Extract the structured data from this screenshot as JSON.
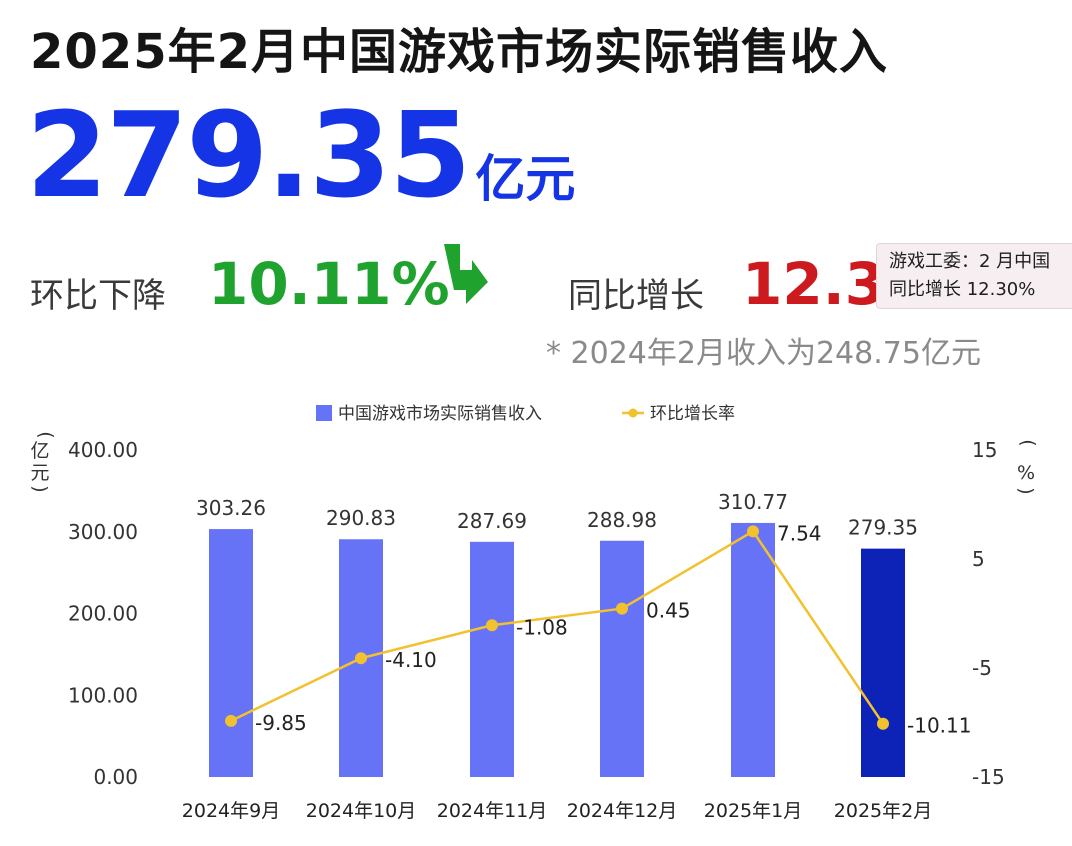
{
  "title": "2025年2月中国游戏市场实际销售收入",
  "headline": {
    "value": "279.35",
    "unit": "亿元"
  },
  "mom": {
    "label": "环比下降",
    "value": "10.11%"
  },
  "yoy": {
    "label": "同比增长",
    "value": "12.30"
  },
  "footnote": "* 2024年2月收入为248.75亿元",
  "tooltip": {
    "line1": "游戏工委：2 月中国",
    "line2": "同比增长 12.30%"
  },
  "colors": {
    "bar": "#6773f7",
    "bar_highlight": "#0d23b8",
    "line": "#f2c12e",
    "down": "#1fa22e",
    "up": "#cc1a1f",
    "headline": "#1434e6"
  },
  "chart_data": {
    "type": "bar",
    "categories": [
      "2024年9月",
      "2024年10月",
      "2024年11月",
      "2024年12月",
      "2025年1月",
      "2025年2月"
    ],
    "series": [
      {
        "name": "中国游戏市场实际销售收入",
        "type": "bar",
        "axis": "left",
        "values": [
          303.26,
          290.83,
          287.69,
          288.98,
          310.77,
          279.35
        ],
        "labels": [
          "303.26",
          "290.83",
          "287.69",
          "288.98",
          "310.77",
          "279.35"
        ]
      },
      {
        "name": "环比增长率",
        "type": "line",
        "axis": "right",
        "values": [
          -9.85,
          -4.1,
          -1.08,
          0.45,
          7.54,
          -10.11
        ],
        "labels": [
          "-9.85",
          "-4.10",
          "-1.08",
          "0.45",
          "7.54",
          "-10.11"
        ]
      }
    ],
    "ylabel": "亿元",
    "y2label": "%",
    "ylim": [
      0,
      400
    ],
    "y2lim": [
      -15,
      15
    ],
    "yticks": [
      "0.00",
      "100.00",
      "200.00",
      "300.00",
      "400.00"
    ],
    "y2ticks": [
      "-15",
      "-5",
      "5",
      "15"
    ],
    "legend": "top-center",
    "grid": false
  }
}
